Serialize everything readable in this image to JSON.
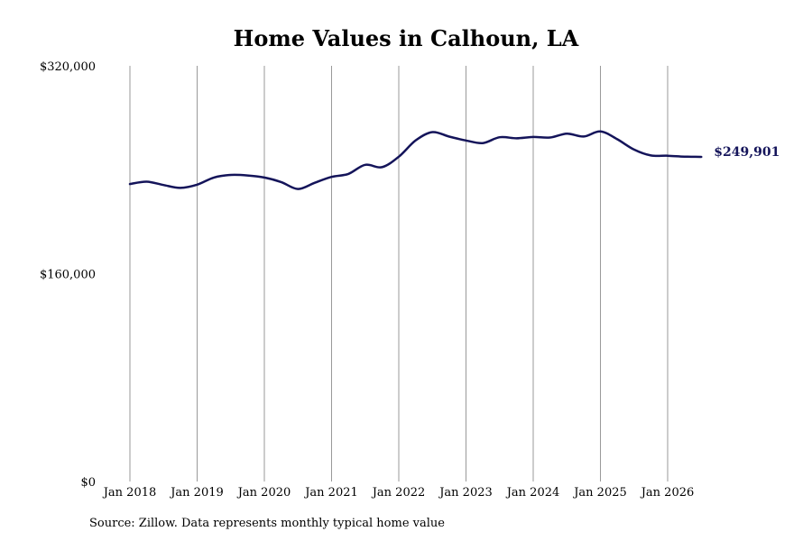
{
  "chart_data": {
    "type": "line",
    "title": "Home Values in Calhoun, LA",
    "xlabel": "",
    "ylabel": "",
    "ylim": [
      0,
      320000
    ],
    "xlim": [
      "2018-01",
      "2026-07"
    ],
    "y_ticks": [
      "$0",
      "$160,000",
      "$320,000"
    ],
    "y_tick_values": [
      0,
      160000,
      320000
    ],
    "x_ticks": [
      "Jan 2018",
      "Jan 2019",
      "Jan 2020",
      "Jan 2021",
      "Jan 2022",
      "Jan 2023",
      "Jan 2024",
      "Jan 2025",
      "Jan 2026"
    ],
    "x_tick_values": [
      "2018-01",
      "2019-01",
      "2020-01",
      "2021-01",
      "2022-01",
      "2023-01",
      "2024-01",
      "2025-01",
      "2026-01"
    ],
    "grid": "vertical",
    "line_color": "#14145a",
    "series": [
      {
        "name": "",
        "end_label": "$249,901",
        "points": [
          [
            "2018-01",
            229000
          ],
          [
            "2018-04",
            230800
          ],
          [
            "2018-07",
            228200
          ],
          [
            "2018-10",
            226000
          ],
          [
            "2019-01",
            228500
          ],
          [
            "2019-04",
            234000
          ],
          [
            "2019-07",
            236000
          ],
          [
            "2019-10",
            235600
          ],
          [
            "2020-01",
            234000
          ],
          [
            "2020-04",
            230500
          ],
          [
            "2020-07",
            225200
          ],
          [
            "2020-10",
            230000
          ],
          [
            "2021-01",
            234500
          ],
          [
            "2021-04",
            236800
          ],
          [
            "2021-07",
            243800
          ],
          [
            "2021-10",
            242000
          ],
          [
            "2022-01",
            250000
          ],
          [
            "2022-04",
            262500
          ],
          [
            "2022-07",
            269000
          ],
          [
            "2022-10",
            265500
          ],
          [
            "2023-01",
            262500
          ],
          [
            "2023-04",
            260500
          ],
          [
            "2023-07",
            265000
          ],
          [
            "2023-10",
            264200
          ],
          [
            "2024-01",
            265200
          ],
          [
            "2024-04",
            264800
          ],
          [
            "2024-07",
            267800
          ],
          [
            "2024-10",
            265600
          ],
          [
            "2025-01",
            269500
          ],
          [
            "2025-04",
            263500
          ],
          [
            "2025-07",
            255500
          ],
          [
            "2025-10",
            251000
          ],
          [
            "2026-01",
            250800
          ],
          [
            "2026-04",
            250100
          ],
          [
            "2026-07",
            249901
          ]
        ]
      }
    ]
  },
  "source": "Source: Zillow. Data represents monthly typical home value"
}
